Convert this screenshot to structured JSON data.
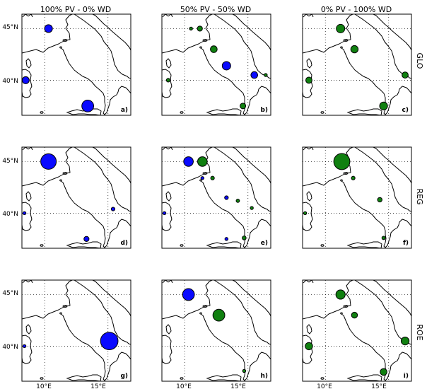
{
  "colors": {
    "pv": "#0a0aff",
    "wd": "#108010"
  },
  "columns": [
    "100% PV - 0% WD",
    "50% PV - 50% WD",
    "0% PV - 100% WD"
  ],
  "rows": [
    "GLO",
    "REG",
    "ROE"
  ],
  "lat_ticks": [
    "45°N",
    "40°N"
  ],
  "lon_ticks": [
    "10°E",
    "15°E"
  ],
  "extent": {
    "lon": [
      8.2,
      16.8
    ],
    "lat": [
      36.6,
      46.4
    ]
  },
  "chart_data": {
    "type": "map",
    "panels": [
      {
        "id": "a",
        "label": "a)",
        "row": "GLO",
        "column": "100% PV - 0% WD",
        "markers": [
          {
            "tech": "pv",
            "lon": 10.3,
            "lat": 45.0,
            "size": 0.28
          },
          {
            "tech": "pv",
            "lon": 8.5,
            "lat": 40.0,
            "size": 0.25
          },
          {
            "tech": "pv",
            "lon": 13.4,
            "lat": 37.5,
            "size": 0.42
          }
        ]
      },
      {
        "id": "b",
        "label": "b)",
        "row": "GLO",
        "column": "50% PV - 50% WD",
        "markers": [
          {
            "tech": "wd",
            "lon": 10.5,
            "lat": 45.0,
            "size": 0.1
          },
          {
            "tech": "wd",
            "lon": 11.2,
            "lat": 45.0,
            "size": 0.18
          },
          {
            "tech": "wd",
            "lon": 12.3,
            "lat": 43.0,
            "size": 0.24
          },
          {
            "tech": "pv",
            "lon": 13.3,
            "lat": 41.4,
            "size": 0.3
          },
          {
            "tech": "pv",
            "lon": 15.5,
            "lat": 40.5,
            "size": 0.24
          },
          {
            "tech": "wd",
            "lon": 16.4,
            "lat": 40.5,
            "size": 0.1
          },
          {
            "tech": "wd",
            "lon": 8.7,
            "lat": 40.0,
            "size": 0.13
          },
          {
            "tech": "wd",
            "lon": 14.6,
            "lat": 37.5,
            "size": 0.2
          }
        ]
      },
      {
        "id": "c",
        "label": "c)",
        "row": "GLO",
        "column": "0% PV - 100% WD",
        "markers": [
          {
            "tech": "wd",
            "lon": 11.2,
            "lat": 45.0,
            "size": 0.3
          },
          {
            "tech": "wd",
            "lon": 12.3,
            "lat": 43.0,
            "size": 0.26
          },
          {
            "tech": "wd",
            "lon": 8.7,
            "lat": 40.0,
            "size": 0.22
          },
          {
            "tech": "wd",
            "lon": 16.3,
            "lat": 40.5,
            "size": 0.22
          },
          {
            "tech": "wd",
            "lon": 14.6,
            "lat": 37.5,
            "size": 0.28
          }
        ]
      },
      {
        "id": "d",
        "label": "d)",
        "row": "REG",
        "column": "100% PV - 0% WD",
        "markers": [
          {
            "tech": "pv",
            "lon": 10.3,
            "lat": 45.0,
            "size": 0.55
          },
          {
            "tech": "pv",
            "lon": 15.4,
            "lat": 40.4,
            "size": 0.13
          },
          {
            "tech": "pv",
            "lon": 8.4,
            "lat": 40.0,
            "size": 0.09
          },
          {
            "tech": "pv",
            "lon": 13.3,
            "lat": 37.5,
            "size": 0.18
          }
        ]
      },
      {
        "id": "e",
        "label": "e)",
        "row": "REG",
        "column": "50% PV - 50% WD",
        "markers": [
          {
            "tech": "pv",
            "lon": 10.3,
            "lat": 45.0,
            "size": 0.34
          },
          {
            "tech": "wd",
            "lon": 11.4,
            "lat": 45.0,
            "size": 0.34
          },
          {
            "tech": "pv",
            "lon": 11.4,
            "lat": 43.4,
            "size": 0.11
          },
          {
            "tech": "wd",
            "lon": 12.2,
            "lat": 43.4,
            "size": 0.13
          },
          {
            "tech": "pv",
            "lon": 13.3,
            "lat": 41.5,
            "size": 0.13
          },
          {
            "tech": "wd",
            "lon": 14.2,
            "lat": 41.2,
            "size": 0.12
          },
          {
            "tech": "wd",
            "lon": 15.3,
            "lat": 40.5,
            "size": 0.1
          },
          {
            "tech": "pv",
            "lon": 8.4,
            "lat": 40.0,
            "size": 0.09
          },
          {
            "tech": "wd",
            "lon": 14.7,
            "lat": 37.6,
            "size": 0.14
          },
          {
            "tech": "pv",
            "lon": 13.3,
            "lat": 37.5,
            "size": 0.11
          }
        ]
      },
      {
        "id": "f",
        "label": "f)",
        "row": "REG",
        "column": "0% PV - 100% WD",
        "markers": [
          {
            "tech": "wd",
            "lon": 11.3,
            "lat": 45.0,
            "size": 0.57
          },
          {
            "tech": "wd",
            "lon": 12.2,
            "lat": 43.4,
            "size": 0.13
          },
          {
            "tech": "wd",
            "lon": 14.3,
            "lat": 41.3,
            "size": 0.16
          },
          {
            "tech": "wd",
            "lon": 8.4,
            "lat": 40.0,
            "size": 0.09
          },
          {
            "tech": "wd",
            "lon": 14.6,
            "lat": 37.6,
            "size": 0.12
          }
        ]
      },
      {
        "id": "g",
        "label": "g)",
        "row": "ROE",
        "column": "100% PV - 0% WD",
        "markers": [
          {
            "tech": "pv",
            "lon": 15.1,
            "lat": 40.5,
            "size": 0.62
          },
          {
            "tech": "pv",
            "lon": 8.4,
            "lat": 40.0,
            "size": 0.1
          }
        ]
      },
      {
        "id": "h",
        "label": "h)",
        "row": "ROE",
        "column": "50% PV - 50% WD",
        "markers": [
          {
            "tech": "pv",
            "lon": 10.3,
            "lat": 45.0,
            "size": 0.42
          },
          {
            "tech": "wd",
            "lon": 12.7,
            "lat": 43.0,
            "size": 0.42
          },
          {
            "tech": "wd",
            "lon": 14.7,
            "lat": 37.6,
            "size": 0.08
          }
        ]
      },
      {
        "id": "i",
        "label": "i)",
        "row": "ROE",
        "column": "0% PV - 100% WD",
        "markers": [
          {
            "tech": "wd",
            "lon": 11.2,
            "lat": 45.0,
            "size": 0.33
          },
          {
            "tech": "wd",
            "lon": 12.3,
            "lat": 43.0,
            "size": 0.21
          },
          {
            "tech": "wd",
            "lon": 8.7,
            "lat": 40.0,
            "size": 0.26
          },
          {
            "tech": "wd",
            "lon": 16.3,
            "lat": 40.5,
            "size": 0.28
          },
          {
            "tech": "wd",
            "lon": 14.6,
            "lat": 37.5,
            "size": 0.24
          }
        ]
      }
    ]
  }
}
